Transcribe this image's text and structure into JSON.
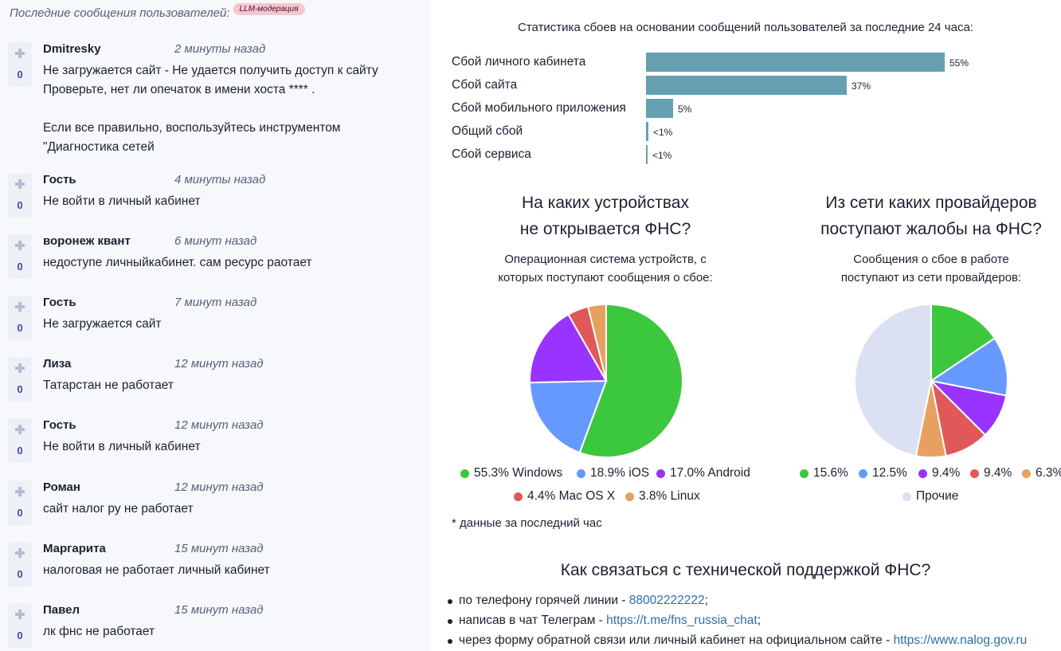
{
  "messages_header": {
    "title": "Последние сообщения пользователей:",
    "badge": "LLM-модерация"
  },
  "messages": [
    {
      "author": "Dmitresky",
      "time": "2 минуты назад",
      "votes": "0",
      "text": "Не загружается сайт - Не удается получить доступ к сайту\nПроверьте, нет ли опечаток в имени хоста **** .\n\nЕсли все правильно, воспользуйтесь инструментом\n\"Диагностика сетей"
    },
    {
      "author": "Гость",
      "time": "4 минуты назад",
      "votes": "0",
      "text": "Не войти в личный кабинет"
    },
    {
      "author": "воронеж квант",
      "time": "6 минут назад",
      "votes": "0",
      "text": "недоступе личныйкабинет. сам ресурс раотает"
    },
    {
      "author": "Гость",
      "time": "7 минут назад",
      "votes": "0",
      "text": "Не загружается сайт"
    },
    {
      "author": "Лиза",
      "time": "12 минут назад",
      "votes": "0",
      "text": "Татарстан не работает"
    },
    {
      "author": "Гость",
      "time": "12 минут назад",
      "votes": "0",
      "text": "Не войти в личный кабинет"
    },
    {
      "author": "Роман",
      "time": "12 минут назад",
      "votes": "0",
      "text": "сайт налог ру не работает"
    },
    {
      "author": "Маргарита",
      "time": "15 минут назад",
      "votes": "0",
      "text": "налоговая не работает личный кабинет"
    },
    {
      "author": "Павел",
      "time": "15 минут назад",
      "votes": "0",
      "text": "лк фнс не работает"
    }
  ],
  "chart_data": [
    {
      "type": "bar",
      "title": "Статистика сбоев на основании сообщений пользователей за последние 24 часа:",
      "categories": [
        "Сбой личного кабинета",
        "Сбой сайта",
        "Сбой мобильного приложения",
        "Общий сбой",
        "Сбой сервиса"
      ],
      "values": [
        55,
        37,
        5,
        0.5,
        0.3
      ],
      "value_labels": [
        "55%",
        "37%",
        "5%",
        "<1%",
        "<1%"
      ],
      "color": "#669fb0"
    },
    {
      "type": "pie",
      "title_line1": "На каких устройствах",
      "title_line2": "не открывается ФНС?",
      "subtitle_line1": "Операционная система устройств, с",
      "subtitle_line2": "которых поступают сообщения о сбое:",
      "slices": [
        {
          "label": "55.3% Windows",
          "value": 55.3,
          "color": "#3cc83c"
        },
        {
          "label": "18.9% iOS",
          "value": 18.9,
          "color": "#6699ff"
        },
        {
          "label": "17.0% Android",
          "value": 17.0,
          "color": "#9933ff"
        },
        {
          "label": "4.4% Mac OS X",
          "value": 4.4,
          "color": "#e05858"
        },
        {
          "label": "3.8% Linux",
          "value": 3.8,
          "color": "#e8a060"
        }
      ]
    },
    {
      "type": "pie",
      "title_line1": "Из сети каких провайдеров",
      "title_line2": "поступают жалобы на ФНС?",
      "subtitle_line1": "Сообщения о сбое в работе",
      "subtitle_line2": "поступают из сети провайдеров:",
      "slices": [
        {
          "label": "15.6%",
          "value": 15.6,
          "color": "#3cc83c"
        },
        {
          "label": "12.5%",
          "value": 12.5,
          "color": "#6699ff"
        },
        {
          "label": "9.4%",
          "value": 9.4,
          "color": "#9933ff"
        },
        {
          "label": "9.4%",
          "value": 9.4,
          "color": "#e05858"
        },
        {
          "label": "6.3%",
          "value": 6.3,
          "color": "#e8a060"
        },
        {
          "label": "Прочие",
          "value": 46.8,
          "color": "#dbe0f3"
        }
      ]
    }
  ],
  "footnote": "* данные за последний час",
  "support": {
    "title": "Как связаться с технической поддержкой ФНС?",
    "items": [
      {
        "prefix": "по телефону горячей линии - ",
        "link": "88002222222",
        "suffix": ";"
      },
      {
        "prefix": "написав в чат Телеграм - ",
        "link": "https://t.me/fns_russia_chat",
        "suffix": ";"
      },
      {
        "prefix": "через форму обратной связи или личный кабинет на официальном сайте - ",
        "link": "https://www.nalog.gov.ru",
        "suffix": ""
      }
    ]
  }
}
